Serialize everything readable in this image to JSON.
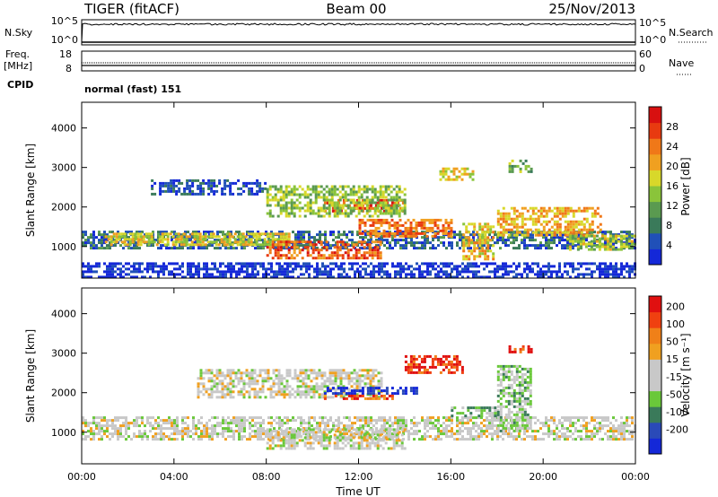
{
  "header": {
    "radar_title": "TIGER (fitACF)",
    "beam": "Beam 00",
    "date": "25/Nov/2013"
  },
  "panels": {
    "nsky": {
      "label": "N.Sky",
      "right_label": "N.Search",
      "ticks_left": [
        "10^5",
        "10^0"
      ],
      "ticks_right": [
        "10^5",
        "10^0"
      ]
    },
    "freq": {
      "label_line1": "Freq.",
      "label_line2": "[MHz]",
      "right_label": "Nave",
      "ticks_left": [
        "18",
        "8"
      ],
      "ticks_right": [
        "60",
        "0"
      ]
    },
    "cpid": {
      "label": "CPID",
      "mode": "normal (fast) 151"
    }
  },
  "chart_data": [
    {
      "type": "heatmap",
      "name": "power",
      "ylabel": "Slant Range [km]",
      "xlabel": "Time UT",
      "x_ticks": [
        "00:00",
        "04:00",
        "08:00",
        "12:00",
        "16:00",
        "20:00",
        "00:00"
      ],
      "x_range_hours": [
        0,
        24
      ],
      "y_ticks": [
        1000,
        2000,
        3000,
        4000
      ],
      "ylim": [
        200,
        4650
      ],
      "colorbar": {
        "label": "Power [dB]",
        "ticks": [
          "4",
          "8",
          "12",
          "16",
          "20",
          "24",
          "28"
        ],
        "colors": [
          "#1428d8",
          "#2050b8",
          "#3a7a5a",
          "#5a9a50",
          "#8ac43a",
          "#d8d82a",
          "#f0a020",
          "#f07818",
          "#e83a10",
          "#d81010"
        ]
      },
      "regions": [
        {
          "t": [
            0,
            24
          ],
          "r": [
            950,
            1400
          ],
          "level": 0.2
        },
        {
          "t": [
            1,
            9
          ],
          "r": [
            1050,
            1350
          ],
          "level": 0.55
        },
        {
          "t": [
            8,
            13
          ],
          "r": [
            700,
            1150
          ],
          "level": 0.8
        },
        {
          "t": [
            12,
            16
          ],
          "r": [
            1250,
            1700
          ],
          "level": 0.75
        },
        {
          "t": [
            10.5,
            14
          ],
          "r": [
            1900,
            2200
          ],
          "level": 0.85
        },
        {
          "t": [
            8,
            14
          ],
          "r": [
            1800,
            2550
          ],
          "level": 0.45
        },
        {
          "t": [
            16.5,
            17.8
          ],
          "r": [
            700,
            1600
          ],
          "level": 0.6
        },
        {
          "t": [
            18,
            22.5
          ],
          "r": [
            1300,
            2000
          ],
          "level": 0.65
        },
        {
          "t": [
            21,
            24
          ],
          "r": [
            950,
            1300
          ],
          "level": 0.5
        },
        {
          "t": [
            3,
            8
          ],
          "r": [
            2300,
            2700
          ],
          "level": 0.15
        },
        {
          "t": [
            15.5,
            17
          ],
          "r": [
            2700,
            3000
          ],
          "level": 0.55
        },
        {
          "t": [
            18.5,
            19.5
          ],
          "r": [
            2900,
            3200
          ],
          "level": 0.4
        },
        {
          "t": [
            0,
            24
          ],
          "r": [
            250,
            600
          ],
          "level": 0.05
        }
      ]
    },
    {
      "type": "heatmap",
      "name": "velocity",
      "ylabel": "Slant Range [km]",
      "xlabel": "Time UT",
      "x_ticks": [
        "00:00",
        "04:00",
        "08:00",
        "12:00",
        "16:00",
        "20:00",
        "00:00"
      ],
      "x_range_hours": [
        0,
        24
      ],
      "y_ticks": [
        1000,
        2000,
        3000,
        4000
      ],
      "ylim": [
        200,
        4650
      ],
      "colorbar": {
        "label": "Velocity [m s⁻¹]",
        "ticks": [
          "200",
          "100",
          "50",
          "15",
          "-15",
          "-50",
          "-100",
          "-200"
        ],
        "colors": [
          "#1428d8",
          "#2a4ab8",
          "#3a7a5a",
          "#6ac83a",
          "#c8c8c8",
          "#c8c8c8",
          "#f0a020",
          "#f08018",
          "#f04010",
          "#e01010"
        ]
      },
      "regions": [
        {
          "t": [
            0,
            24
          ],
          "r": [
            800,
            1400
          ],
          "level": 0.5
        },
        {
          "t": [
            5,
            13
          ],
          "r": [
            1900,
            2600
          ],
          "level": 0.5
        },
        {
          "t": [
            8,
            14
          ],
          "r": [
            600,
            1100
          ],
          "level": 0.5
        },
        {
          "t": [
            10.5,
            14.5
          ],
          "r": [
            1950,
            2150
          ],
          "level": 0.05
        },
        {
          "t": [
            10.5,
            13.5
          ],
          "r": [
            1850,
            1950
          ],
          "level": 0.8
        },
        {
          "t": [
            14,
            16.5
          ],
          "r": [
            2500,
            2950
          ],
          "level": 0.9
        },
        {
          "t": [
            18.5,
            19.5
          ],
          "r": [
            3000,
            3200
          ],
          "level": 0.9
        },
        {
          "t": [
            16,
            18
          ],
          "r": [
            1400,
            1650
          ],
          "level": 0.35
        },
        {
          "t": [
            18,
            19.5
          ],
          "r": [
            1000,
            2700
          ],
          "level": 0.4
        }
      ]
    }
  ]
}
